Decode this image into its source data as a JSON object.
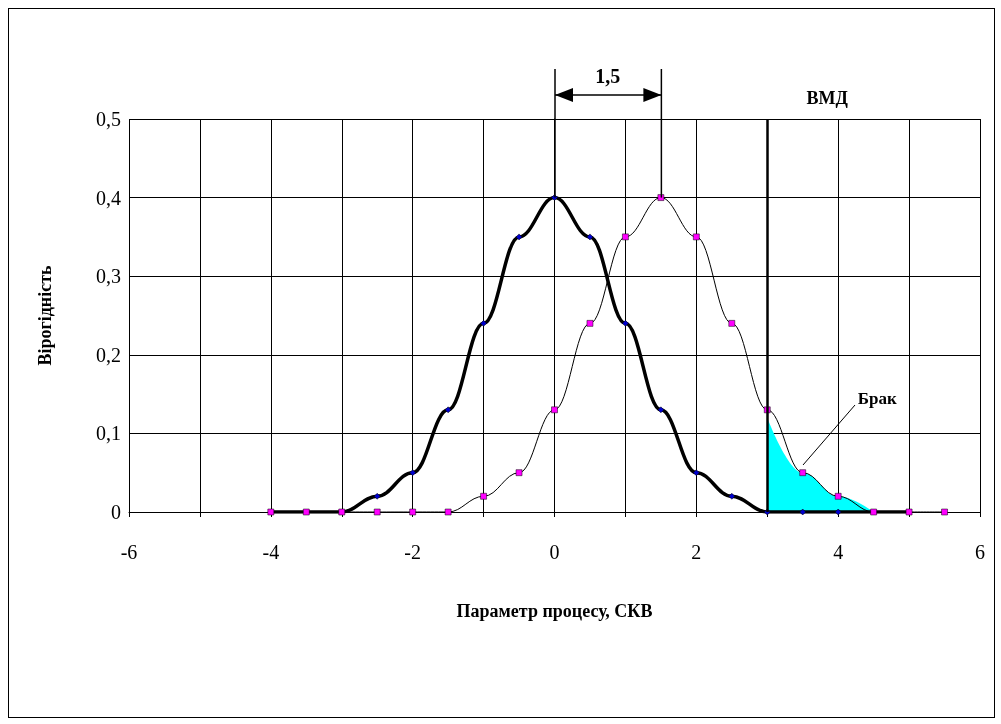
{
  "chart_data": {
    "type": "line",
    "xlabel": "Параметр процесу, СКВ",
    "ylabel": "Вірогідність",
    "xlim": [
      -6,
      6
    ],
    "xticks": [
      -6,
      {
        "value": -5,
        "label": null
      },
      -4,
      {
        "value": -3,
        "label": null
      },
      -2,
      {
        "value": -1,
        "label": null
      },
      0,
      {
        "value": 1,
        "label": null
      },
      2,
      {
        "value": 3,
        "label": null
      },
      4,
      {
        "value": 5,
        "label": null
      },
      6
    ],
    "ylim": [
      0,
      0.5
    ],
    "yticks": [
      0,
      {
        "value": 0.1,
        "label": "0,1"
      },
      {
        "value": 0.2,
        "label": "0,2"
      },
      {
        "value": 0.3,
        "label": "0,3"
      },
      {
        "value": 0.4,
        "label": "0,4"
      },
      {
        "value": 0.5,
        "label": "0,5"
      }
    ],
    "grid": true,
    "series": [
      {
        "color": "#0000cc",
        "marker": "diamond",
        "x": [
          -4,
          -3.5,
          -3,
          -2.5,
          -2,
          -1.5,
          -1,
          -0.5,
          0,
          0.5,
          1,
          1.5,
          2,
          2.5,
          3,
          3.5,
          4,
          4.5,
          5
        ],
        "values": [
          0,
          0,
          0,
          0.02,
          0.05,
          0.13,
          0.24,
          0.35,
          0.4,
          0.35,
          0.24,
          0.13,
          0.05,
          0.02,
          0,
          0,
          0,
          0,
          0
        ]
      },
      {
        "color": "#ff00ff",
        "marker": "square",
        "x": [
          -4,
          -3.5,
          -3,
          -2.5,
          -2,
          -1.5,
          -1,
          -0.5,
          0,
          0.5,
          1,
          1.5,
          2,
          2.5,
          3,
          3.5,
          4,
          4.5,
          5,
          5.5
        ],
        "values": [
          0,
          0,
          0,
          0,
          0,
          0,
          0.02,
          0.05,
          0.13,
          0.24,
          0.35,
          0.4,
          0.35,
          0.24,
          0.13,
          0.05,
          0.02,
          0,
          0,
          0
        ]
      },
      {
        "type": "area",
        "color": "#00ffff",
        "x": [
          3,
          3.5,
          4,
          4.5
        ],
        "values": [
          0.12,
          0.05,
          0.02,
          0
        ]
      }
    ],
    "ref_lines": [
      {
        "axis": "x",
        "value": 3,
        "label": "ВМД"
      }
    ],
    "annotations": [
      "1,5",
      {
        "text": "Брак",
        "x": 3.5,
        "y": 0.06
      }
    ]
  }
}
